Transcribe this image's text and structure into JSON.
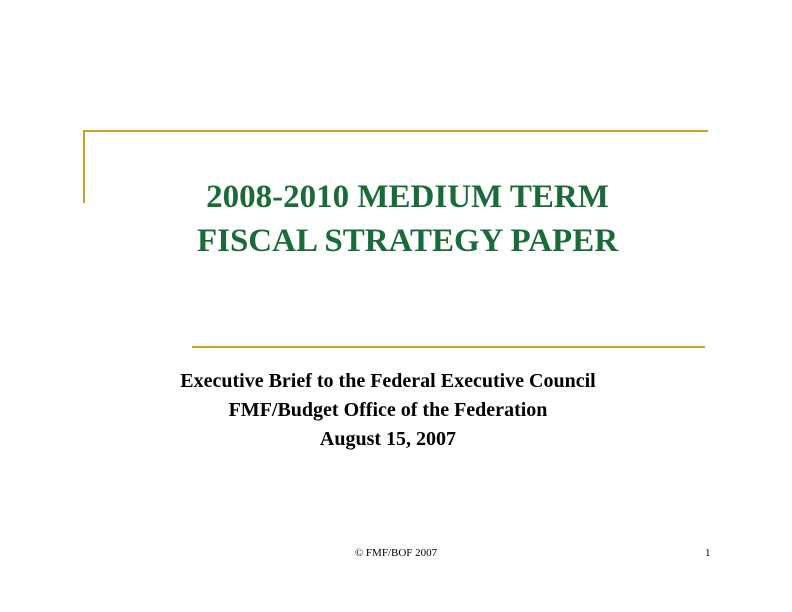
{
  "slide": {
    "title_line1": "2008-2010 MEDIUM TERM",
    "title_line2": "FISCAL STRATEGY PAPER",
    "subtitle_line1": "Executive Brief to the Federal Executive Council",
    "subtitle_line2": "FMF/Budget Office of the Federation",
    "subtitle_line3": "August 15, 2007",
    "footer": "© FMF/BOF 2007",
    "page_number": "1"
  },
  "colors": {
    "accent_rule": "#c9a227",
    "title": "#1a6b3a",
    "text": "#000000"
  }
}
